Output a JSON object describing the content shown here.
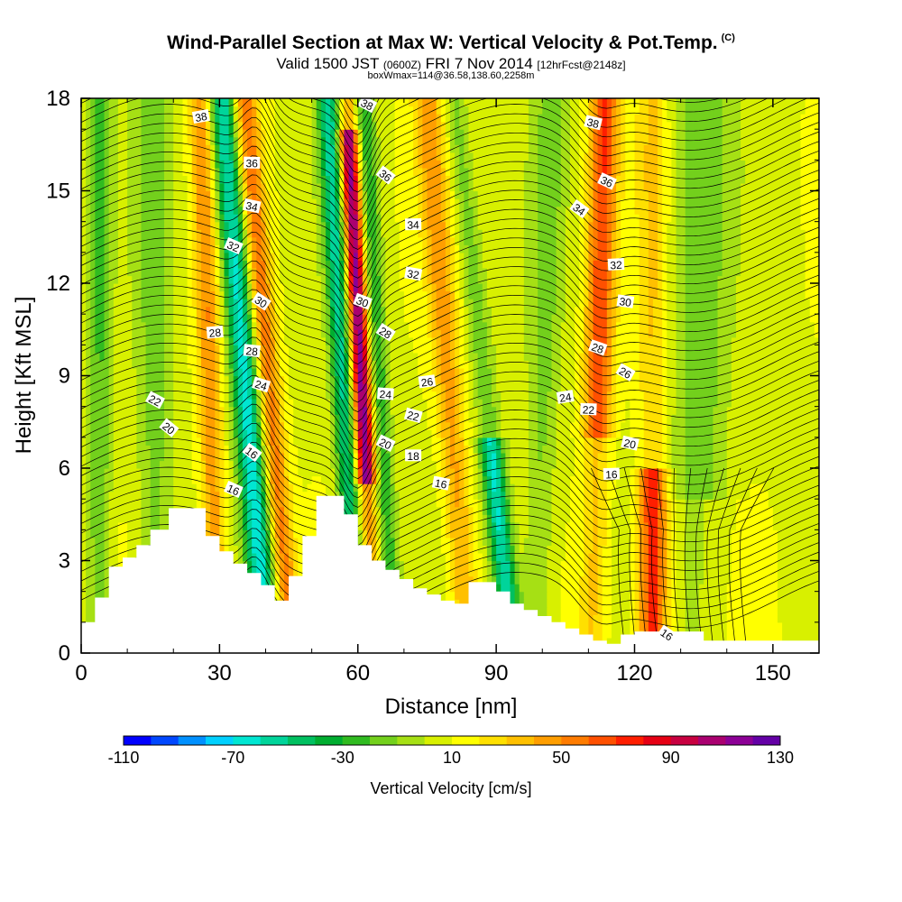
{
  "chart_data": {
    "type": "heatmap",
    "title": "Wind-Parallel Section at Max W: Vertical Velocity & Pot.Temp.",
    "title_mark": "(C)",
    "subtitle_main": "Valid 1500 JST",
    "subtitle_utc": "(0600Z)",
    "subtitle_date": "FRI 7 Nov 2014",
    "subtitle_run": "[12hrFcst@2148z]",
    "subtitle2": "boxWmax=114@36.58,138.60,2258m",
    "xlabel": "Distance [nm]",
    "ylabel": "Height [Kft MSL]",
    "xlim": [
      0,
      160
    ],
    "ylim": [
      0,
      18
    ],
    "xticks": [
      0,
      30,
      60,
      90,
      120,
      150
    ],
    "yticks": [
      0,
      3,
      6,
      9,
      12,
      15,
      18
    ],
    "colorbar": {
      "label": "Vertical Velocity [cm/s]",
      "min": -110,
      "max": 130,
      "step": 10,
      "tick_labels": [
        "-110",
        "-70",
        "-30",
        "10",
        "50",
        "90",
        "130"
      ],
      "colors": [
        "#0000ff",
        "#0047ff",
        "#0090ff",
        "#00d0ff",
        "#00e6d2",
        "#00d49a",
        "#00c060",
        "#00ad30",
        "#30bb20",
        "#73d01c",
        "#a6e014",
        "#d8f000",
        "#ffff00",
        "#ffe000",
        "#ffc000",
        "#ff9e00",
        "#ff7c00",
        "#ff5000",
        "#ff1e00",
        "#e60014",
        "#c80040",
        "#aa0070",
        "#8c0096",
        "#6400a6"
      ]
    },
    "series": [
      {
        "x": 36,
        "value": -70
      },
      {
        "x": 40,
        "value": 50
      },
      {
        "x": 57,
        "value": -60
      },
      {
        "x": 61,
        "value": 110
      },
      {
        "x": 88,
        "value": -70
      },
      {
        "x": 112,
        "value": 60
      },
      {
        "x": 124,
        "value": 70
      },
      {
        "x": 134,
        "value": -25
      }
    ],
    "terrain": {
      "x": [
        0,
        3,
        3,
        6,
        6,
        9,
        9,
        12,
        12,
        15,
        15,
        19,
        19,
        27,
        27,
        30,
        30,
        33,
        33,
        36,
        36,
        39,
        39,
        42,
        42,
        45,
        45,
        48,
        48,
        51,
        51,
        57,
        57,
        60,
        60,
        63,
        63,
        66,
        66,
        69,
        69,
        72,
        72,
        75,
        75,
        78,
        78,
        81,
        81,
        84,
        84,
        90,
        90,
        93,
        93,
        96,
        96,
        99,
        99,
        102,
        102,
        105,
        105,
        108,
        108,
        111,
        111,
        114,
        114,
        117,
        117,
        120,
        120,
        135,
        135,
        140,
        140,
        150,
        150,
        160
      ],
      "y": [
        1.0,
        1.0,
        1.8,
        1.8,
        2.8,
        2.8,
        3.1,
        3.1,
        3.5,
        3.5,
        4.0,
        4.0,
        4.7,
        4.7,
        3.8,
        3.8,
        3.3,
        3.3,
        2.9,
        2.9,
        2.6,
        2.6,
        2.2,
        2.2,
        1.7,
        1.7,
        2.5,
        2.5,
        3.8,
        3.8,
        5.1,
        5.1,
        4.5,
        4.5,
        3.5,
        3.5,
        3.0,
        3.0,
        2.7,
        2.7,
        2.4,
        2.4,
        2.1,
        2.1,
        1.9,
        1.9,
        1.7,
        1.7,
        1.6,
        1.6,
        2.3,
        2.3,
        2.0,
        2.0,
        1.6,
        1.6,
        1.4,
        1.4,
        1.2,
        1.2,
        1.0,
        1.0,
        0.8,
        0.8,
        0.6,
        0.6,
        0.4,
        0.4,
        0.3,
        0.3,
        0.6,
        0.6,
        0.7,
        0.7,
        0.4,
        0.4,
        0.4,
        0.4,
        0.4,
        0.4
      ]
    },
    "theta_contours": [
      16,
      18,
      20,
      22,
      24,
      26,
      28,
      30,
      32,
      34,
      36,
      38
    ],
    "contour_labels": [
      {
        "text": "38",
        "x": 26,
        "y": 17.4
      },
      {
        "text": "38",
        "x": 62,
        "y": 17.8
      },
      {
        "text": "38",
        "x": 111,
        "y": 17.2
      },
      {
        "text": "36",
        "x": 37,
        "y": 15.9
      },
      {
        "text": "36",
        "x": 66,
        "y": 15.5
      },
      {
        "text": "36",
        "x": 114,
        "y": 15.3
      },
      {
        "text": "34",
        "x": 37,
        "y": 14.5
      },
      {
        "text": "34",
        "x": 72,
        "y": 13.9
      },
      {
        "text": "34",
        "x": 108,
        "y": 14.4
      },
      {
        "text": "32",
        "x": 33,
        "y": 13.2
      },
      {
        "text": "32",
        "x": 72,
        "y": 12.3
      },
      {
        "text": "32",
        "x": 116,
        "y": 12.6
      },
      {
        "text": "30",
        "x": 39,
        "y": 11.4
      },
      {
        "text": "30",
        "x": 61,
        "y": 11.4
      },
      {
        "text": "30",
        "x": 118,
        "y": 11.4
      },
      {
        "text": "28",
        "x": 29,
        "y": 10.4
      },
      {
        "text": "28",
        "x": 66,
        "y": 10.4
      },
      {
        "text": "28",
        "x": 112,
        "y": 9.9
      },
      {
        "text": "28",
        "x": 37,
        "y": 9.8
      },
      {
        "text": "26",
        "x": 75,
        "y": 8.8
      },
      {
        "text": "26",
        "x": 118,
        "y": 9.1
      },
      {
        "text": "24",
        "x": 39,
        "y": 8.7
      },
      {
        "text": "24",
        "x": 66,
        "y": 8.4
      },
      {
        "text": "24",
        "x": 105,
        "y": 8.3
      },
      {
        "text": "22",
        "x": 16,
        "y": 8.2
      },
      {
        "text": "22",
        "x": 72,
        "y": 7.7
      },
      {
        "text": "22",
        "x": 110,
        "y": 7.9
      },
      {
        "text": "20",
        "x": 19,
        "y": 7.3
      },
      {
        "text": "20",
        "x": 66,
        "y": 6.8
      },
      {
        "text": "20",
        "x": 119,
        "y": 6.8
      },
      {
        "text": "18",
        "x": 72,
        "y": 6.4
      },
      {
        "text": "16",
        "x": 37,
        "y": 6.5
      },
      {
        "text": "16",
        "x": 33,
        "y": 5.3
      },
      {
        "text": "16",
        "x": 78,
        "y": 5.5
      },
      {
        "text": "16",
        "x": 115,
        "y": 5.8
      },
      {
        "text": "16",
        "x": 127,
        "y": 0.6
      }
    ]
  }
}
